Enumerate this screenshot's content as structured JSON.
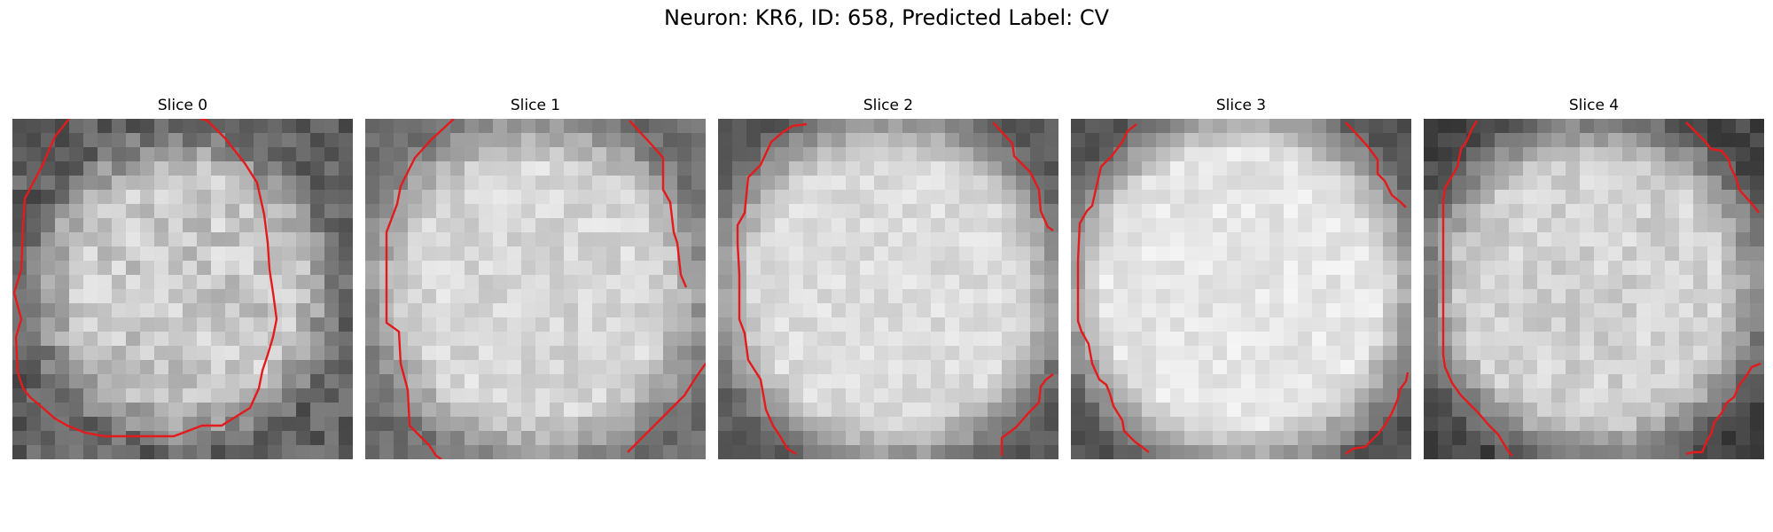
{
  "figure": {
    "title": "Neuron: KR6, ID: 658, Predicted Label: CV"
  },
  "slices": [
    {
      "label": "Slice 0",
      "brightness_center": 200,
      "brightness_edge": 95,
      "radius": 0.46,
      "noise": 60,
      "seed": 11
    },
    {
      "label": "Slice 1",
      "brightness_center": 215,
      "brightness_edge": 110,
      "radius": 0.52,
      "noise": 40,
      "seed": 23
    },
    {
      "label": "Slice 2",
      "brightness_center": 220,
      "brightness_edge": 90,
      "radius": 0.54,
      "noise": 32,
      "seed": 37
    },
    {
      "label": "Slice 3",
      "brightness_center": 230,
      "brightness_edge": 80,
      "radius": 0.56,
      "noise": 30,
      "seed": 41
    },
    {
      "label": "Slice 4",
      "brightness_center": 210,
      "brightness_edge": 70,
      "radius": 0.53,
      "noise": 42,
      "seed": 53
    }
  ],
  "colors": {
    "contour": "#e41a1c",
    "background": "#ffffff"
  }
}
